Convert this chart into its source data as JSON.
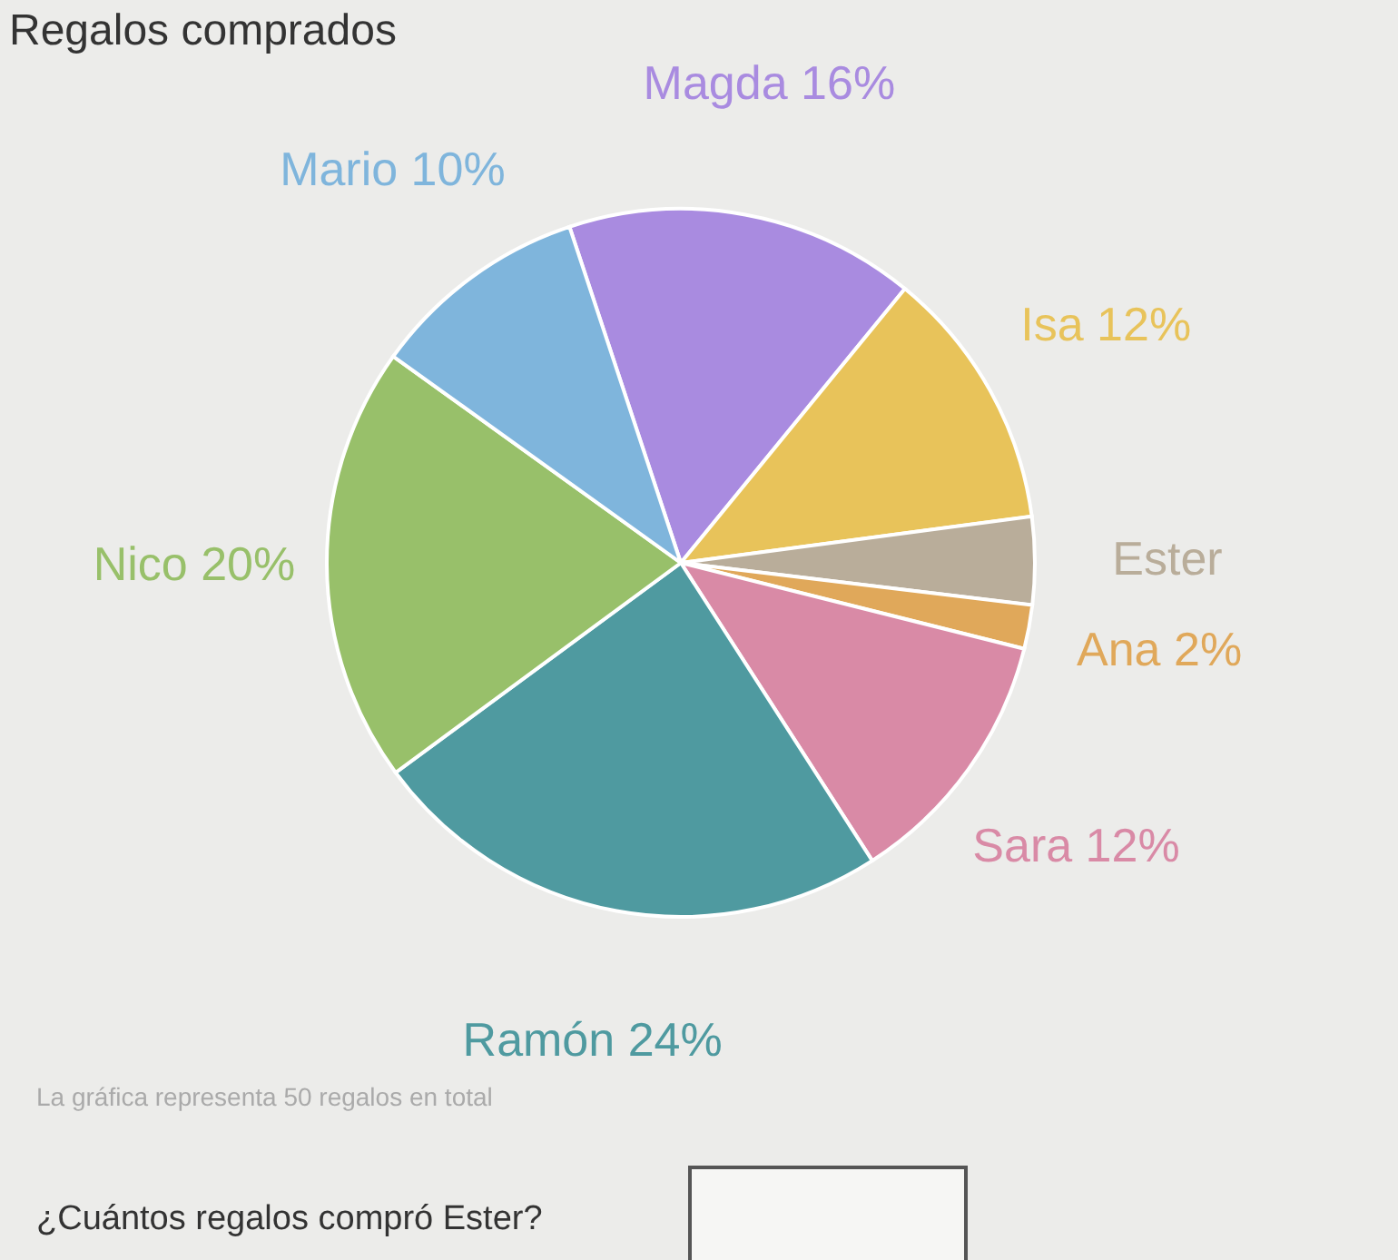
{
  "chart_data": {
    "type": "pie",
    "title": "Regalos comprados",
    "categories": [
      "Magda",
      "Isa",
      "Ester",
      "Ana",
      "Sara",
      "Ramón",
      "Nico",
      "Mario"
    ],
    "values": [
      16,
      12,
      4,
      2,
      12,
      24,
      20,
      10
    ],
    "value_labels": [
      "16%",
      "12%",
      null,
      "2%",
      "12%",
      "24%",
      "20%",
      "10%"
    ],
    "colors": [
      "#a98be0",
      "#e8c35a",
      "#b9ad9a",
      "#e0a85a",
      "#d98aa6",
      "#4f9aa0",
      "#98c06a",
      "#7fb5dc"
    ],
    "legend": false,
    "annotations": [
      "La gráfica representa 50 regalos en total",
      "¿Cuántos regalos compró Ester?"
    ]
  }
}
